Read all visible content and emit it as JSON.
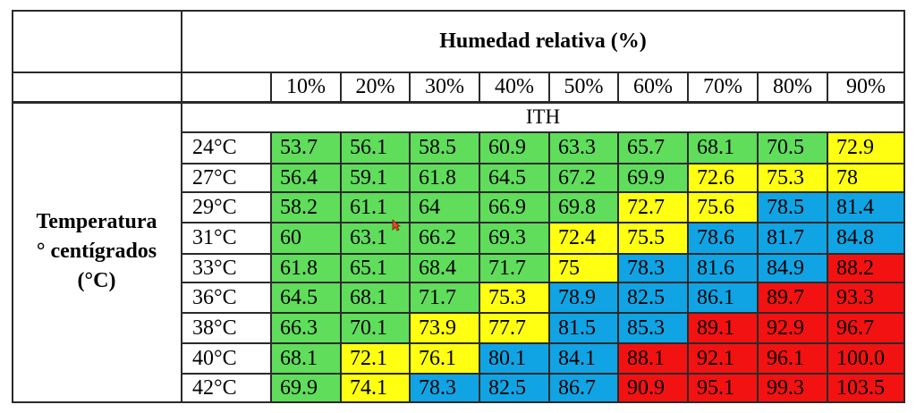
{
  "header_title": "Humedad relativa (%)",
  "row_label": [
    "Temperatura",
    "° centígrados",
    "(°C)"
  ],
  "sub_header": "ITH",
  "humidity_columns": [
    "10%",
    "20%",
    "30%",
    "40%",
    "50%",
    "60%",
    "70%",
    "80%",
    "90%"
  ],
  "colors": {
    "green": "#5fdd5b",
    "yellow": "#ffff12",
    "blue": "#10a4e4",
    "red": "#f21212"
  },
  "rows": [
    {
      "temp": "24°C",
      "values": [
        "53.7",
        "56.1",
        "58.5",
        "60.9",
        "63.3",
        "65.7",
        "68.1",
        "70.5",
        "72.9"
      ],
      "zones": [
        "g",
        "g",
        "g",
        "g",
        "g",
        "g",
        "g",
        "g",
        "y"
      ]
    },
    {
      "temp": "27°C",
      "values": [
        "56.4",
        "59.1",
        "61.8",
        "64.5",
        "67.2",
        "69.9",
        "72.6",
        "75.3",
        "78"
      ],
      "zones": [
        "g",
        "g",
        "g",
        "g",
        "g",
        "g",
        "y",
        "y",
        "y"
      ]
    },
    {
      "temp": "29°C",
      "values": [
        "58.2",
        "61.1",
        "64",
        "66.9",
        "69.8",
        "72.7",
        "75.6",
        "78.5",
        "81.4"
      ],
      "zones": [
        "g",
        "g",
        "g",
        "g",
        "g",
        "y",
        "y",
        "b",
        "b"
      ]
    },
    {
      "temp": "31°C",
      "values": [
        "60",
        "63.1",
        "66.2",
        "69.3",
        "72.4",
        "75.5",
        "78.6",
        "81.7",
        "84.8"
      ],
      "zones": [
        "g",
        "g",
        "g",
        "g",
        "y",
        "y",
        "b",
        "b",
        "b"
      ]
    },
    {
      "temp": "33°C",
      "values": [
        "61.8",
        "65.1",
        "68.4",
        "71.7",
        "75",
        "78.3",
        "81.6",
        "84.9",
        "88.2"
      ],
      "zones": [
        "g",
        "g",
        "g",
        "g",
        "y",
        "b",
        "b",
        "b",
        "r"
      ]
    },
    {
      "temp": "36°C",
      "values": [
        "64.5",
        "68.1",
        "71.7",
        "75.3",
        "78.9",
        "82.5",
        "86.1",
        "89.7",
        "93.3"
      ],
      "zones": [
        "g",
        "g",
        "g",
        "y",
        "b",
        "b",
        "b",
        "r",
        "r"
      ]
    },
    {
      "temp": "38°C",
      "values": [
        "66.3",
        "70.1",
        "73.9",
        "77.7",
        "81.5",
        "85.3",
        "89.1",
        "92.9",
        "96.7"
      ],
      "zones": [
        "g",
        "g",
        "y",
        "y",
        "b",
        "b",
        "r",
        "r",
        "r"
      ]
    },
    {
      "temp": "40°C",
      "values": [
        "68.1",
        "72.1",
        "76.1",
        "80.1",
        "84.1",
        "88.1",
        "92.1",
        "96.1",
        "100.0"
      ],
      "zones": [
        "g",
        "y",
        "y",
        "b",
        "b",
        "r",
        "r",
        "r",
        "r"
      ]
    },
    {
      "temp": "42°C",
      "values": [
        "69.9",
        "74.1",
        "78.3",
        "82.5",
        "86.7",
        "90.9",
        "95.1",
        "99.3",
        "103.5"
      ],
      "zones": [
        "g",
        "y",
        "b",
        "b",
        "b",
        "r",
        "r",
        "r",
        "r"
      ]
    }
  ]
}
